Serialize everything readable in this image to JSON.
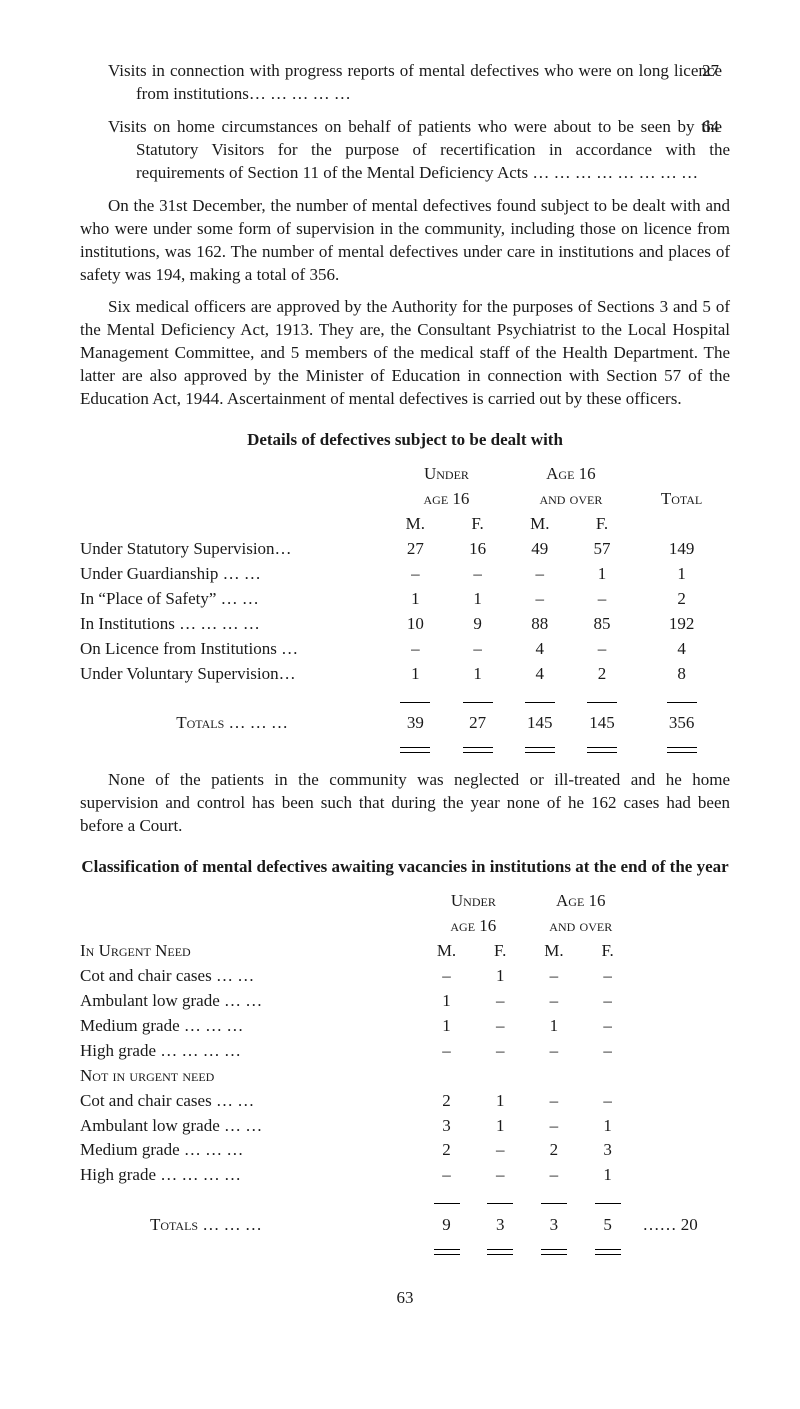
{
  "para_visits_progress": "Visits in connection with progress reports of mental defectives who were on long licence from institutions… … … … …",
  "num_visits_progress": "27",
  "para_visits_home": "Visits on home circumstances on behalf of patients who were about to be seen by the Statutory Visitors for the purpose of recertification in accordance with the requirements of Section 11 of the Mental Deficiency Acts   … … … … … … … …",
  "num_visits_home": "64",
  "para_on31": "On the 31st December, the number of mental defectives found subject to be dealt with and who were under some form of supervision in the community, including those on licence from institutions, was 162. The number of mental defectives under care in institutions and places of safety was 194, making a total of 356.",
  "para_six": "Six medical officers are approved by the Authority for the purposes of Sections 3 and 5 of the Mental Deficiency Act, 1913. They are, the Consultant Psychiatrist to the Local Hospital Management Committee, and 5 members of the medical staff of the Health Department. The latter are also approved by the Minister of Education in connection with Section 57 of the Education Act, 1944. Ascertainment of mental defectives is carried out by these officers.",
  "heading_details": "Details of defectives subject to be dealt with",
  "h_under": "Under",
  "h_age16": "age 16",
  "h_age16cap": "Age 16",
  "h_andover": "and over",
  "h_total": "Total",
  "h_m": "M.",
  "h_f": "F.",
  "t1_rows": [
    {
      "label": "Under Statutory Supervision…",
      "um": "27",
      "uf": "16",
      "om": "49",
      "of": "57",
      "tot": "149"
    },
    {
      "label": "Under Guardianship   … …",
      "um": "–",
      "uf": "–",
      "om": "–",
      "of": "1",
      "tot": "1"
    },
    {
      "label": "In “Place of Safety”   … …",
      "um": "1",
      "uf": "1",
      "om": "–",
      "of": "–",
      "tot": "2"
    },
    {
      "label": "In Institutions …  …  …  …",
      "um": "10",
      "uf": "9",
      "om": "88",
      "of": "85",
      "tot": "192"
    },
    {
      "label": "On Licence from Institutions …",
      "um": "–",
      "uf": "–",
      "om": "4",
      "of": "–",
      "tot": "4"
    },
    {
      "label": "Under Voluntary Supervision…",
      "um": "1",
      "uf": "1",
      "om": "4",
      "of": "2",
      "tot": "8"
    }
  ],
  "t1_totals_label": "Totals …  …  …",
  "t1_totals": {
    "um": "39",
    "uf": "27",
    "om": "145",
    "of": "145",
    "tot": "356"
  },
  "para_none": "None of the patients in the community was neglected or ill-treated and he home supervision and control has been such that during the year none of he 162 cases had been before a Court.",
  "heading_class": "Classification of mental defectives awaiting vacancies in institutions at the end of the year",
  "t2_urgent": "In Urgent Need",
  "t2_noturgent": "Not in urgent need",
  "t2_rows_urgent": [
    {
      "label": "Cot and chair cases  …  …",
      "um": "–",
      "uf": "1",
      "om": "–",
      "of": "–"
    },
    {
      "label": "Ambulant low grade …  …",
      "um": "1",
      "uf": "–",
      "om": "–",
      "of": "–"
    },
    {
      "label": "Medium grade  …  …  …",
      "um": "1",
      "uf": "–",
      "om": "1",
      "of": "–"
    },
    {
      "label": "High grade …  …  …  …",
      "um": "–",
      "uf": "–",
      "om": "–",
      "of": "–"
    }
  ],
  "t2_rows_not": [
    {
      "label": "Cot and chair cases  …  …",
      "um": "2",
      "uf": "1",
      "om": "–",
      "of": "–"
    },
    {
      "label": "Ambulant low grade …  …",
      "um": "3",
      "uf": "1",
      "om": "–",
      "of": "1"
    },
    {
      "label": "Medium grade  …  …  …",
      "um": "2",
      "uf": "–",
      "om": "2",
      "of": "3"
    },
    {
      "label": "High grade …  …  …  …",
      "um": "–",
      "uf": "–",
      "om": "–",
      "of": "1"
    }
  ],
  "t2_totals_label": "Totals   …  …  …",
  "t2_totals": {
    "um": "9",
    "uf": "3",
    "om": "3",
    "of": "5"
  },
  "t2_grand": "…… 20",
  "page_number": "63"
}
